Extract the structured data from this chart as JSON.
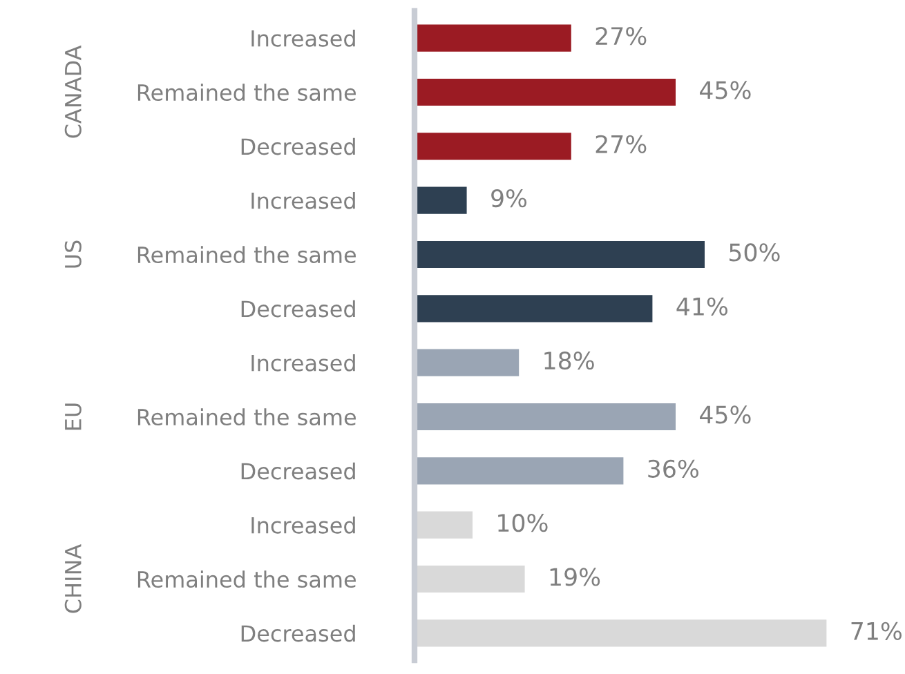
{
  "chart_data": {
    "type": "bar",
    "orientation": "horizontal",
    "data_labels": true,
    "categories": [
      "Increased",
      "Remained the same",
      "Decreased",
      "Increased",
      "Remained the same",
      "Decreased",
      "Increased",
      "Remained the same",
      "Decreased",
      "Increased",
      "Remained the same",
      "Decreased"
    ],
    "values": [
      27,
      45,
      27,
      9,
      50,
      41,
      18,
      45,
      36,
      10,
      19,
      71
    ],
    "value_labels": [
      "27%",
      "45%",
      "27%",
      "9%",
      "50%",
      "41%",
      "18%",
      "45%",
      "36%",
      "10%",
      "19%",
      "71%"
    ],
    "colors": [
      "#9b1b23",
      "#9b1b23",
      "#9b1b23",
      "#2e4052",
      "#2e4052",
      "#2e4052",
      "#9aa5b4",
      "#9aa5b4",
      "#9aa5b4",
      "#d9d9d9",
      "#d9d9d9",
      "#d9d9d9"
    ],
    "annotations": [
      "CANADA",
      "US",
      "EU",
      "CHINA"
    ]
  }
}
